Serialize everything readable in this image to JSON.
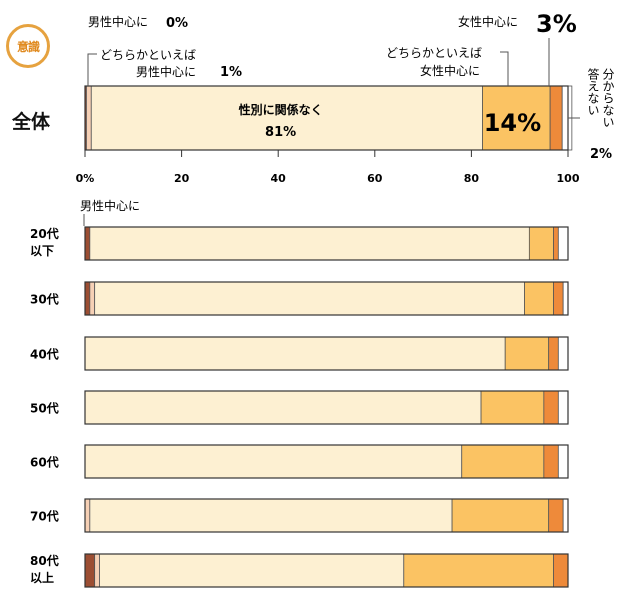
{
  "badge": "意識",
  "chart_data": {
    "type": "bar",
    "stacked": true,
    "orientation": "horizontal",
    "xlim": [
      0,
      100
    ],
    "xticks": [
      "0%",
      "20",
      "40",
      "60",
      "80",
      "100"
    ],
    "segments": [
      "男性中心に",
      "どちらかといえば男性中心に",
      "性別に関係なく",
      "どちらかといえば女性中心に",
      "女性中心に",
      "分からない 答えない"
    ],
    "colors": [
      "#9c4e33",
      "#f6d0b5",
      "#fdf0d2",
      "#fbc363",
      "#ee8a3a",
      "#ffffff"
    ],
    "overall": {
      "label": "全体",
      "values": [
        0.3,
        1,
        81,
        14,
        2.5,
        2
      ],
      "annotations": {
        "male": "男性中心に",
        "male_pct": "0%",
        "lean_male_1": "どちらかといえば",
        "lean_male_2": "男性中心に",
        "lean_male_pct": "1%",
        "neutral": "性別に関係なく",
        "neutral_pct": "81%",
        "lean_female_1": "どちらかといえば",
        "lean_female_2": "女性中心に",
        "lean_female_pct": "14%",
        "female": "女性中心に",
        "female_pct": "3%",
        "unknown_1": "分からない",
        "unknown_2": "答えない",
        "unknown_pct": "2%"
      }
    },
    "age_note": "男性中心に",
    "age_groups": [
      {
        "label": [
          "20代",
          "以下"
        ],
        "values": [
          1,
          0,
          91,
          5,
          1,
          2
        ]
      },
      {
        "label": [
          "30代"
        ],
        "values": [
          1,
          1,
          89,
          6,
          2,
          1
        ]
      },
      {
        "label": [
          "40代"
        ],
        "values": [
          0,
          0,
          87,
          9,
          2,
          2
        ]
      },
      {
        "label": [
          "50代"
        ],
        "values": [
          0,
          0,
          82,
          13,
          3,
          2
        ]
      },
      {
        "label": [
          "60代"
        ],
        "values": [
          0,
          0,
          78,
          17,
          3,
          2
        ]
      },
      {
        "label": [
          "70代"
        ],
        "values": [
          0,
          1,
          75,
          20,
          3,
          1
        ]
      },
      {
        "label": [
          "80代",
          "以上"
        ],
        "values": [
          2,
          1,
          63,
          31,
          3,
          0
        ]
      }
    ]
  }
}
